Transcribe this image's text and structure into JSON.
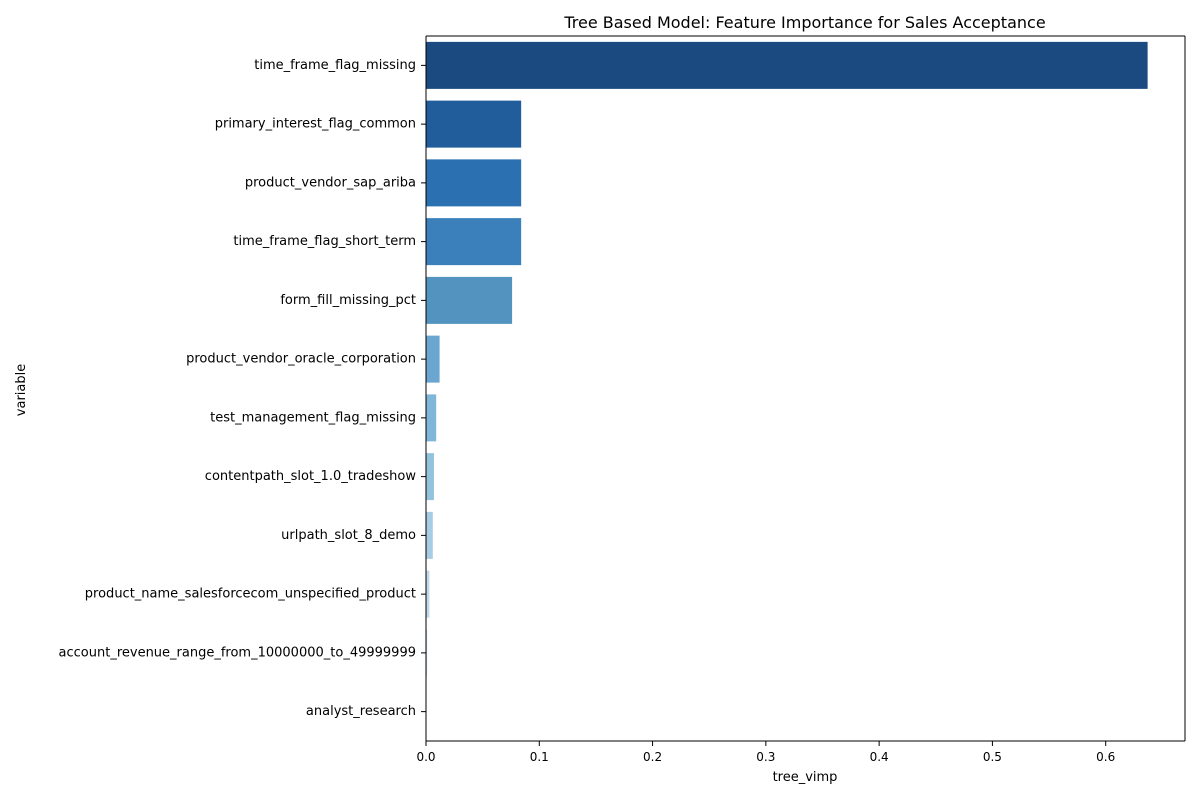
{
  "chart_data": {
    "type": "bar",
    "orientation": "horizontal",
    "title": "Tree Based Model: Feature Importance for Sales Acceptance",
    "xlabel": "tree_vimp",
    "ylabel": "variable",
    "xlim": [
      0,
      0.67
    ],
    "x_ticks": [
      0,
      0.1,
      0.2,
      0.3,
      0.4,
      0.5,
      0.6
    ],
    "x_tick_labels": [
      "0.0",
      "0.1",
      "0.2",
      "0.3",
      "0.4",
      "0.5",
      "0.6"
    ],
    "grid": false,
    "categories": [
      "time_frame_flag_missing",
      "primary_interest_flag_common",
      "product_vendor_sap_ariba",
      "time_frame_flag_short_term",
      "form_fill_missing_pct",
      "product_vendor_oracle_corporation",
      "test_management_flag_missing",
      "contentpath_slot_1.0_tradeshow",
      "urlpath_slot_8_demo",
      "product_name_salesforcecom_unspecified_product",
      "account_revenue_range_from_10000000_to_49999999",
      "analyst_research"
    ],
    "values": [
      0.637,
      0.084,
      0.084,
      0.084,
      0.076,
      0.012,
      0.009,
      0.007,
      0.006,
      0.003,
      0.001,
      0.0
    ],
    "colors": [
      "#1a4a80",
      "#215d9b",
      "#2b70b0",
      "#3b80ba",
      "#5393bf",
      "#6aa6cf",
      "#80b6d8",
      "#93c2dd",
      "#a8cce4",
      "#bfd8ea",
      "#d3e3f2",
      "#e6eef8"
    ]
  }
}
